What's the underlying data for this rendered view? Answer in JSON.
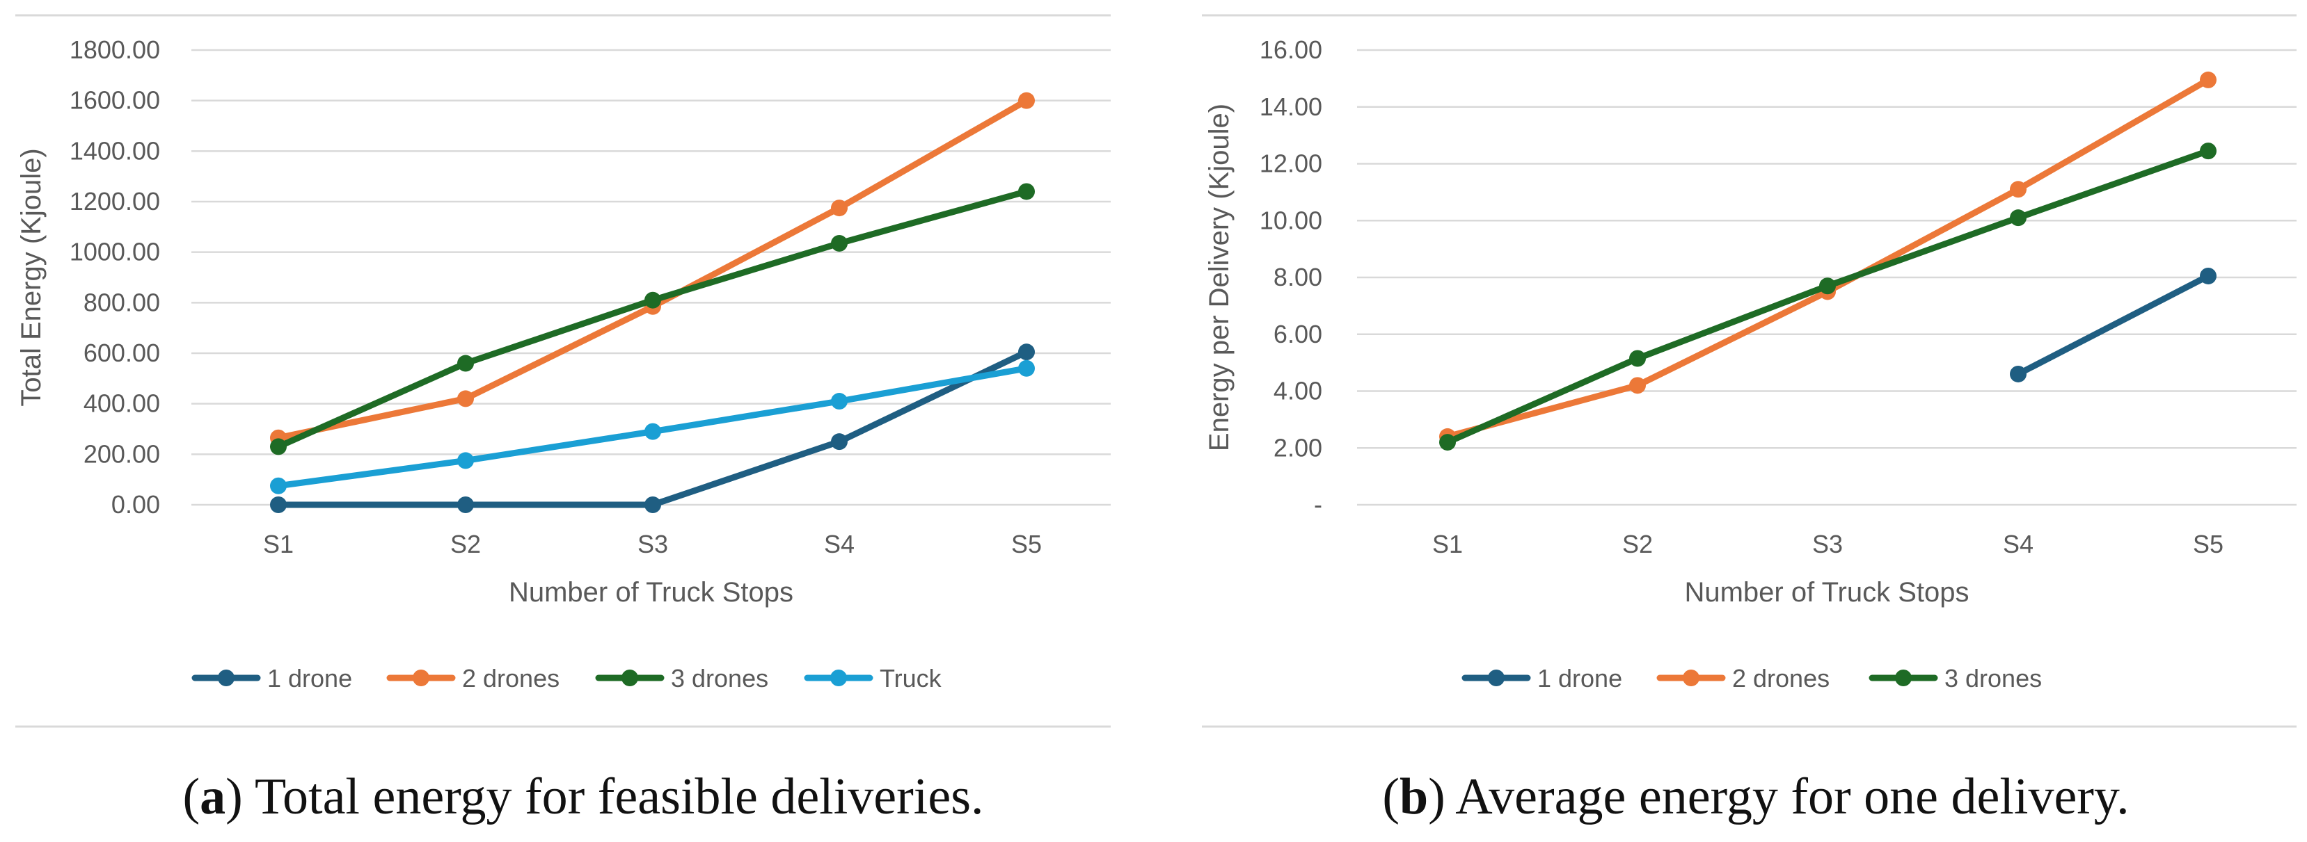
{
  "chart_data": [
    {
      "type": "line",
      "caption_letter": "a",
      "caption_text": "Total energy for feasible deliveries.",
      "categories": [
        "S1",
        "S2",
        "S3",
        "S4",
        "S5"
      ],
      "xlabel": "Number of Truck Stops",
      "ylabel": "Total Energy (Kjoule)",
      "ylim": [
        0,
        1800
      ],
      "yticks": [
        0,
        200,
        400,
        600,
        800,
        1000,
        1200,
        1400,
        1600,
        1800
      ],
      "ytick_labels": [
        "0.00",
        "200.00",
        "400.00",
        "600.00",
        "800.00",
        "1000.00",
        "1200.00",
        "1400.00",
        "1600.00",
        "1800.00"
      ],
      "grid": true,
      "legend_position": "bottom",
      "series": [
        {
          "name": "1 drone",
          "color": "#1f5e82",
          "values": [
            0,
            0,
            0,
            250,
            605
          ]
        },
        {
          "name": "2 drones",
          "color": "#ec7838",
          "values": [
            265,
            420,
            785,
            1175,
            1600
          ]
        },
        {
          "name": "3 drones",
          "color": "#1e6b25",
          "values": [
            230,
            560,
            810,
            1035,
            1240
          ]
        },
        {
          "name": "Truck",
          "color": "#1a9fd4",
          "values": [
            75,
            175,
            290,
            410,
            540
          ]
        }
      ]
    },
    {
      "type": "line",
      "caption_letter": "b",
      "caption_text": "Average energy for one delivery.",
      "categories": [
        "S1",
        "S2",
        "S3",
        "S4",
        "S5"
      ],
      "xlabel": "Number of Truck Stops",
      "ylabel": "Energy per Delivery (Kjoule)",
      "ylim": [
        0,
        16
      ],
      "yticks": [
        0,
        2,
        4,
        6,
        8,
        10,
        12,
        14,
        16
      ],
      "ytick_labels": [
        "-",
        "2.00",
        "4.00",
        "6.00",
        "8.00",
        "10.00",
        "12.00",
        "14.00",
        "16.00"
      ],
      "grid": true,
      "legend_position": "bottom",
      "series": [
        {
          "name": "1 drone",
          "color": "#1f5e82",
          "values": [
            null,
            null,
            null,
            4.6,
            8.05
          ]
        },
        {
          "name": "2 drones",
          "color": "#ec7838",
          "values": [
            2.4,
            4.2,
            7.5,
            11.1,
            14.95
          ]
        },
        {
          "name": "3 drones",
          "color": "#1e6b25",
          "values": [
            2.2,
            5.15,
            7.7,
            10.1,
            12.45
          ]
        }
      ]
    }
  ]
}
